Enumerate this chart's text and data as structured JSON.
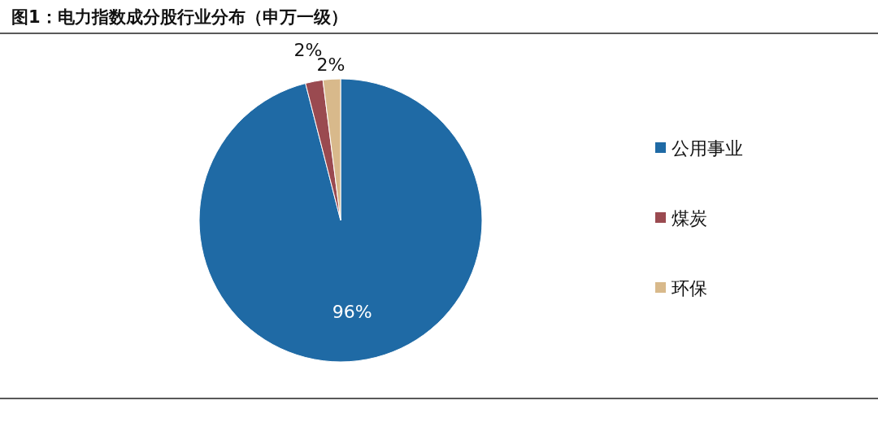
{
  "chart_data": {
    "type": "pie",
    "title": "图1：电力指数成分股行业分布（申万一级）",
    "categories": [
      "公用事业",
      "煤炭",
      "环保"
    ],
    "values": [
      96,
      2,
      2
    ],
    "value_labels": [
      "96%",
      "2%",
      "2%"
    ],
    "colors": [
      "#1f6aa5",
      "#9a4a50",
      "#d8b98b"
    ],
    "legend": "right"
  }
}
